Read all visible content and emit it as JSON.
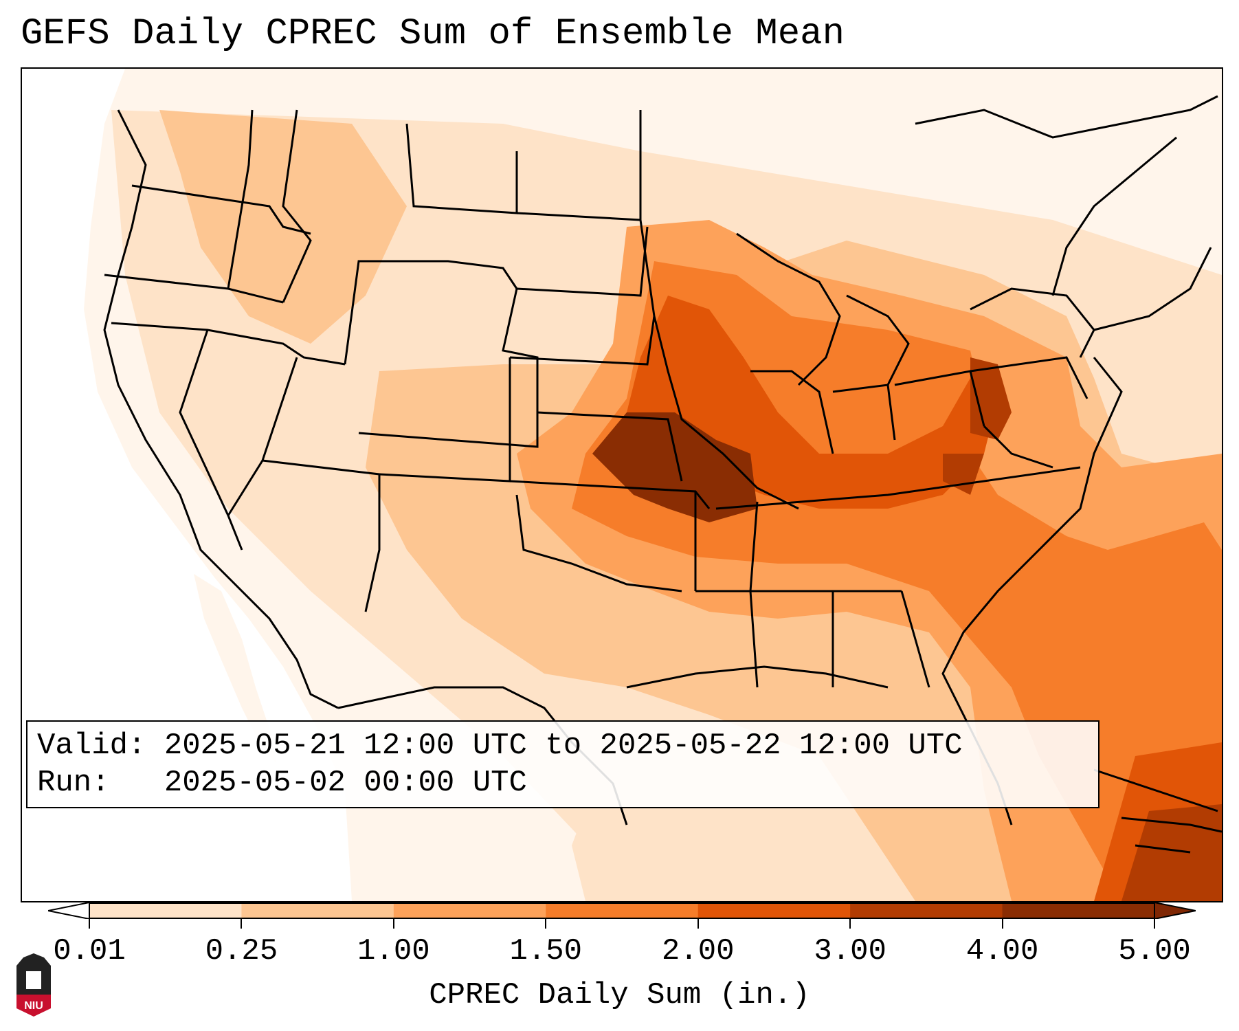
{
  "title": "GEFS Daily CPREC Sum of Ensemble Mean",
  "info": {
    "valid_label": "Valid:",
    "valid_value": "2025-05-21 12:00 UTC to 2025-05-22 12:00 UTC",
    "run_label": "Run:",
    "run_value": "2025-05-02 00:00 UTC"
  },
  "colorbar": {
    "label": "CPREC Daily Sum (in.)",
    "ticks": [
      "0.01",
      "0.25",
      "1.00",
      "1.50",
      "2.00",
      "3.00",
      "4.00",
      "5.00"
    ],
    "colors": [
      "#fff5eb",
      "#fee3c8",
      "#fdc692",
      "#fda25a",
      "#f67d2a",
      "#e15507",
      "#b23c02",
      "#8a2d03"
    ],
    "under_color": "#ffffff",
    "over_color": "#7f2704"
  },
  "logo": {
    "text": "NIU",
    "colors": {
      "dark": "#222222",
      "red": "#c8102e"
    }
  },
  "map_colors": {
    "land_background": "#fff5eb",
    "ocean_background": "#ffffff",
    "state_lines": "#000000"
  }
}
